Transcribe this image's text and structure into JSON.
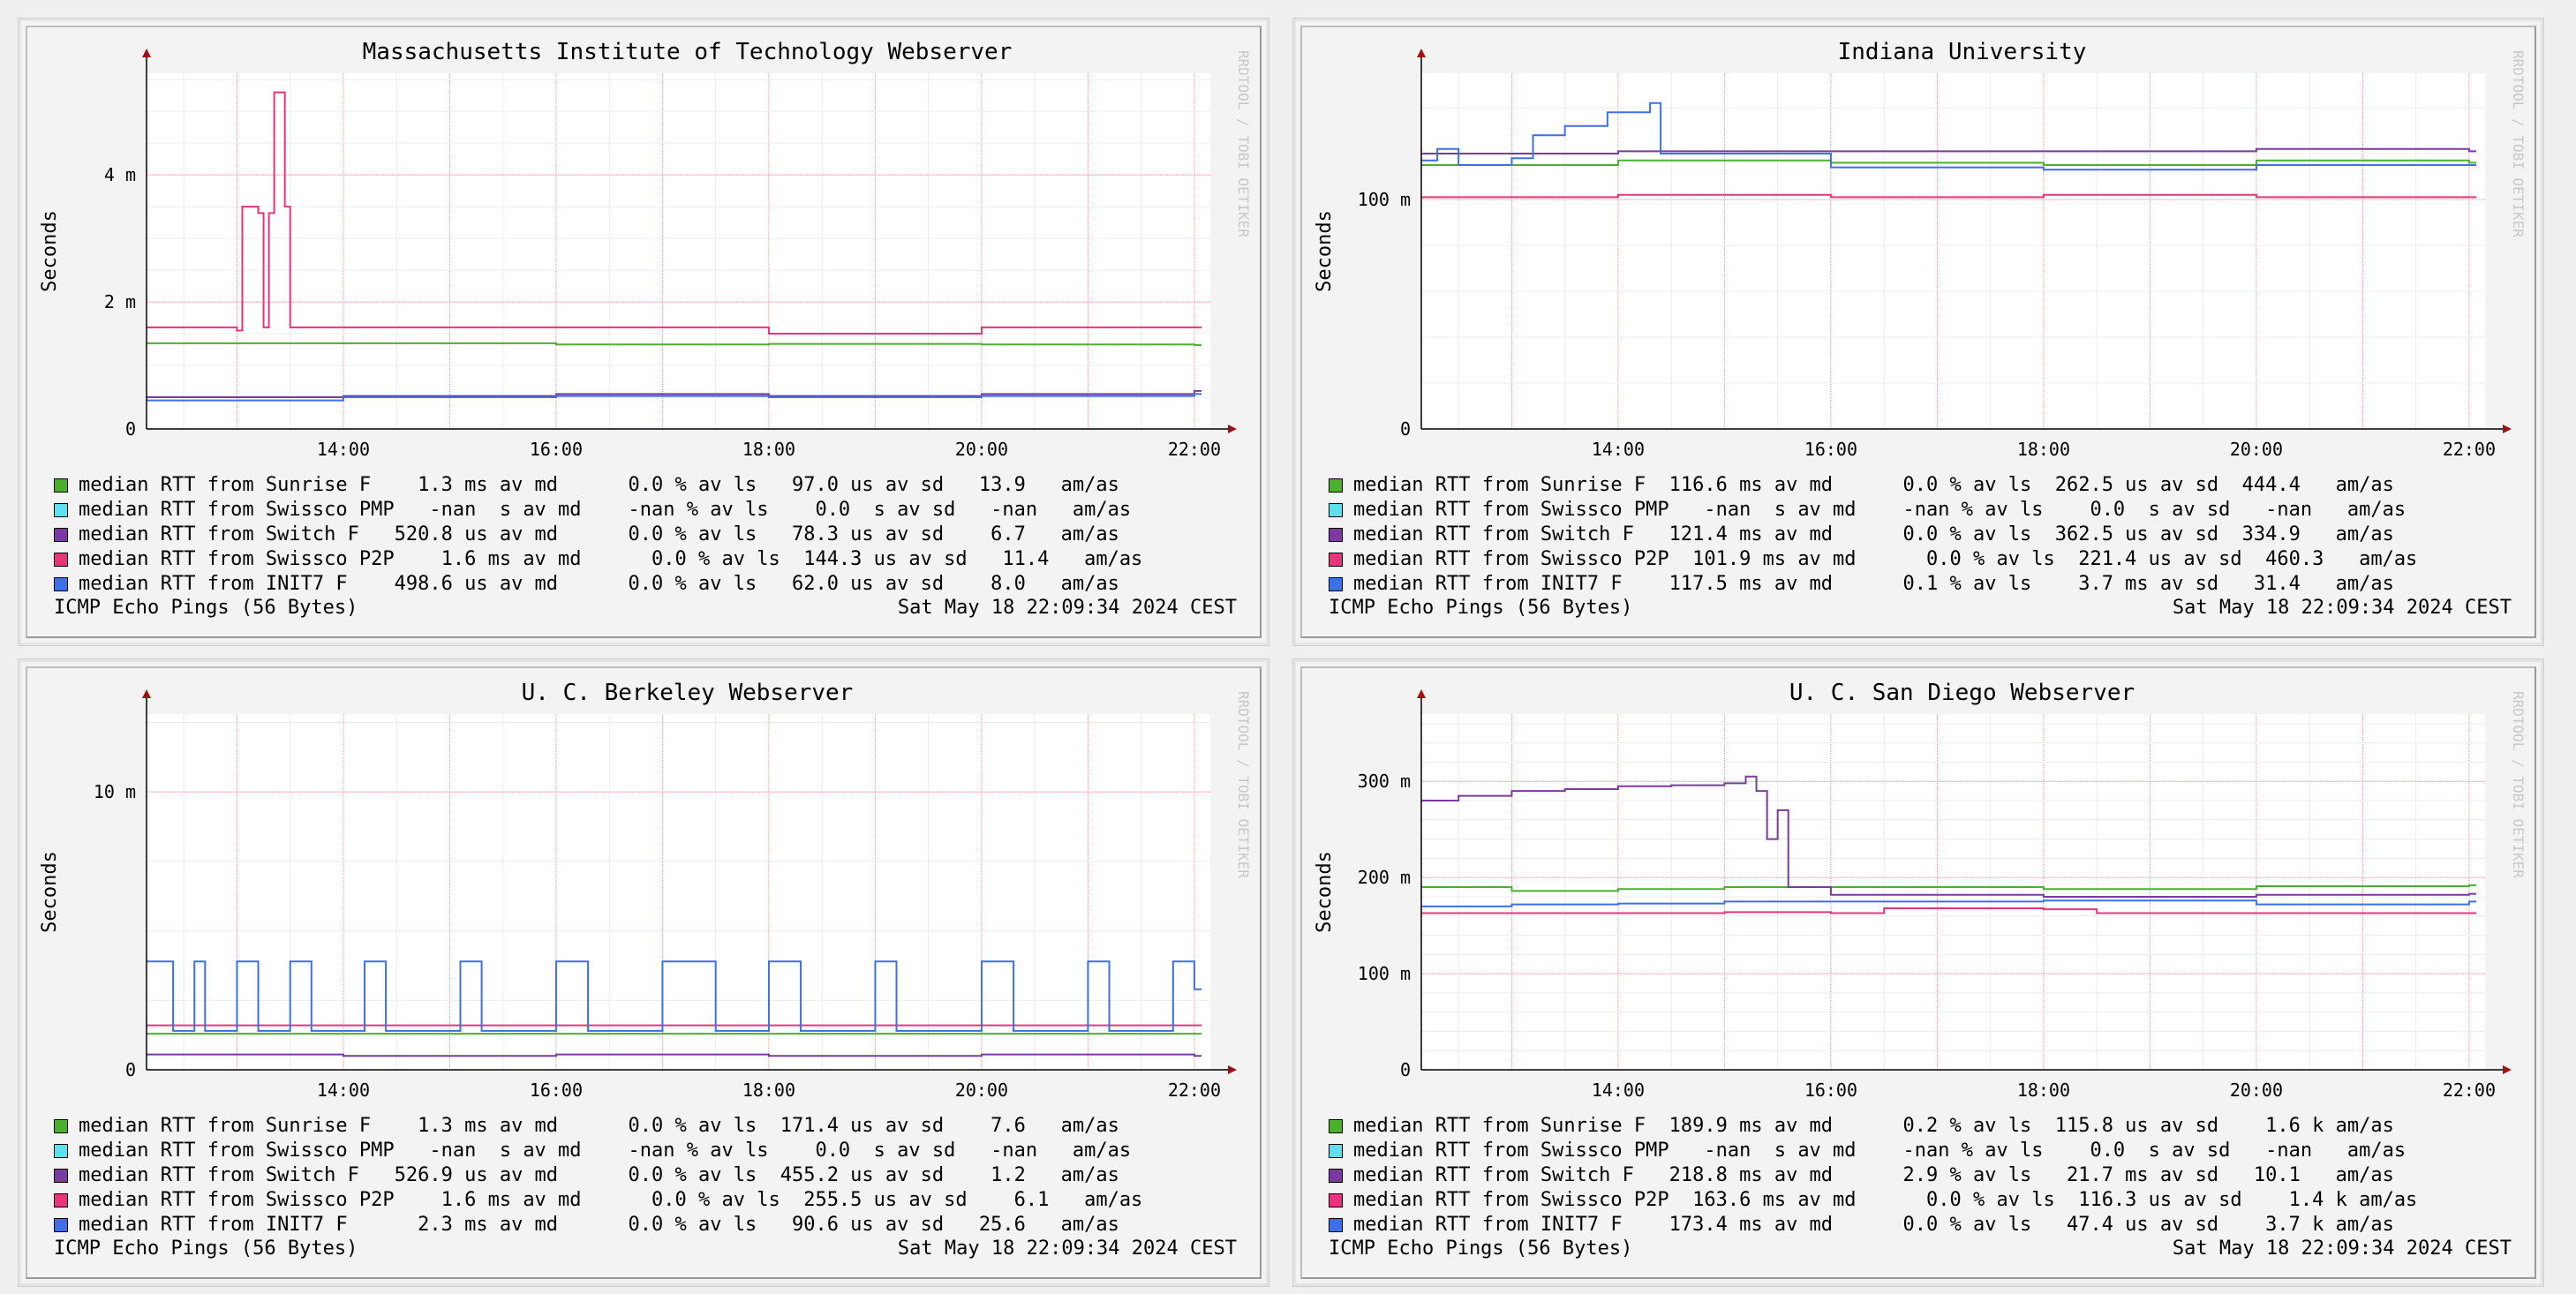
{
  "colors": {
    "sunrise": "#4caf2e",
    "swissco_pmp": "#5fe0ef",
    "switch": "#7b3aa0",
    "swissco_p2p": "#e8347a",
    "init7": "#3d6fe8",
    "grid": "#f0a0a8",
    "axis": "#a01010"
  },
  "panels": [
    {
      "title": "Massachusetts Institute of Technology Webserver",
      "ylabel": "Seconds",
      "watermark": "RRDTOOL / TOBI OETIKER",
      "footer_left": "ICMP Echo Pings (56 Bytes)",
      "footer_right": "Sat May 18 22:09:34 2024 CEST",
      "legend": [
        {
          "key": "sunrise",
          "text": "median RTT from Sunrise F    1.3 ms av md      0.0 % av ls   97.0 us av sd   13.9   am/as"
        },
        {
          "key": "swissco_pmp",
          "text": "median RTT from Swissco PMP   -nan  s av md    -nan % av ls    0.0  s av sd   -nan   am/as"
        },
        {
          "key": "switch",
          "text": "median RTT from Switch F   520.8 us av md      0.0 % av ls   78.3 us av sd    6.7   am/as"
        },
        {
          "key": "swissco_p2p",
          "text": "median RTT from Swissco P2P    1.6 ms av md      0.0 % av ls  144.3 us av sd   11.4   am/as"
        },
        {
          "key": "init7",
          "text": "median RTT from INIT7 F    498.6 us av md      0.0 % av ls   62.0 us av sd    8.0   am/as"
        }
      ]
    },
    {
      "title": "Indiana University",
      "ylabel": "Seconds",
      "watermark": "RRDTOOL / TOBI OETIKER",
      "footer_left": "ICMP Echo Pings (56 Bytes)",
      "footer_right": "Sat May 18 22:09:34 2024 CEST",
      "legend": [
        {
          "key": "sunrise",
          "text": "median RTT from Sunrise F  116.6 ms av md      0.0 % av ls  262.5 us av sd  444.4   am/as"
        },
        {
          "key": "swissco_pmp",
          "text": "median RTT from Swissco PMP   -nan  s av md    -nan % av ls    0.0  s av sd   -nan   am/as"
        },
        {
          "key": "switch",
          "text": "median RTT from Switch F   121.4 ms av md      0.0 % av ls  362.5 us av sd  334.9   am/as"
        },
        {
          "key": "swissco_p2p",
          "text": "median RTT from Swissco P2P  101.9 ms av md      0.0 % av ls  221.4 us av sd  460.3   am/as"
        },
        {
          "key": "init7",
          "text": "median RTT from INIT7 F    117.5 ms av md      0.1 % av ls    3.7 ms av sd   31.4   am/as"
        }
      ]
    },
    {
      "title": "U. C. Berkeley Webserver",
      "ylabel": "Seconds",
      "watermark": "RRDTOOL / TOBI OETIKER",
      "footer_left": "ICMP Echo Pings (56 Bytes)",
      "footer_right": "Sat May 18 22:09:34 2024 CEST",
      "legend": [
        {
          "key": "sunrise",
          "text": "median RTT from Sunrise F    1.3 ms av md      0.0 % av ls  171.4 us av sd    7.6   am/as"
        },
        {
          "key": "swissco_pmp",
          "text": "median RTT from Swissco PMP   -nan  s av md    -nan % av ls    0.0  s av sd   -nan   am/as"
        },
        {
          "key": "switch",
          "text": "median RTT from Switch F   526.9 us av md      0.0 % av ls  455.2 us av sd    1.2   am/as"
        },
        {
          "key": "swissco_p2p",
          "text": "median RTT from Swissco P2P    1.6 ms av md      0.0 % av ls  255.5 us av sd    6.1   am/as"
        },
        {
          "key": "init7",
          "text": "median RTT from INIT7 F      2.3 ms av md      0.0 % av ls   90.6 us av sd   25.6   am/as"
        }
      ]
    },
    {
      "title": "U. C. San Diego Webserver",
      "ylabel": "Seconds",
      "watermark": "RRDTOOL / TOBI OETIKER",
      "footer_left": "ICMP Echo Pings (56 Bytes)",
      "footer_right": "Sat May 18 22:09:34 2024 CEST",
      "legend": [
        {
          "key": "sunrise",
          "text": "median RTT from Sunrise F  189.9 ms av md      0.2 % av ls  115.8 us av sd    1.6 k am/as"
        },
        {
          "key": "swissco_pmp",
          "text": "median RTT from Swissco PMP   -nan  s av md    -nan % av ls    0.0  s av sd   -nan   am/as"
        },
        {
          "key": "switch",
          "text": "median RTT from Switch F   218.8 ms av md      2.9 % av ls   21.7 ms av sd   10.1   am/as"
        },
        {
          "key": "swissco_p2p",
          "text": "median RTT from Swissco P2P  163.6 ms av md      0.0 % av ls  116.3 us av sd    1.4 k am/as"
        },
        {
          "key": "init7",
          "text": "median RTT from INIT7 F    173.4 ms av md      0.0 % av ls   47.4 us av sd    3.7 k am/as"
        }
      ]
    }
  ],
  "chart_data": [
    {
      "type": "line",
      "title": "Massachusetts Institute of Technology Webserver",
      "ylabel": "Seconds",
      "x_ticks": [
        "14:00",
        "16:00",
        "18:00",
        "20:00",
        "22:00"
      ],
      "xlim": [
        12.15,
        22.15
      ],
      "y_ticks": [
        {
          "v": 0,
          "label": "0"
        },
        {
          "v": 2,
          "label": "2 m"
        },
        {
          "v": 4,
          "label": "4 m"
        }
      ],
      "ylim": [
        0,
        5.6
      ],
      "series": [
        {
          "key": "sunrise",
          "name": "Sunrise F",
          "values": [
            [
              12.15,
              1.35
            ],
            [
              14,
              1.35
            ],
            [
              16,
              1.33
            ],
            [
              18,
              1.34
            ],
            [
              20,
              1.33
            ],
            [
              22,
              1.32
            ]
          ]
        },
        {
          "key": "switch",
          "name": "Switch F",
          "values": [
            [
              12.15,
              0.5
            ],
            [
              14,
              0.52
            ],
            [
              16,
              0.55
            ],
            [
              18,
              0.52
            ],
            [
              20,
              0.55
            ],
            [
              22,
              0.6
            ]
          ]
        },
        {
          "key": "swissco_p2p",
          "name": "Swissco P2P",
          "values": [
            [
              12.15,
              1.6
            ],
            [
              13,
              1.55
            ],
            [
              13.05,
              3.5
            ],
            [
              13.2,
              3.4
            ],
            [
              13.25,
              1.6
            ],
            [
              13.3,
              3.4
            ],
            [
              13.35,
              5.3
            ],
            [
              13.45,
              3.5
            ],
            [
              13.5,
              1.6
            ],
            [
              16,
              1.6
            ],
            [
              18,
              1.5
            ],
            [
              20,
              1.6
            ],
            [
              22,
              1.6
            ]
          ]
        },
        {
          "key": "init7",
          "name": "INIT7 F",
          "values": [
            [
              12.15,
              0.45
            ],
            [
              14,
              0.5
            ],
            [
              16,
              0.52
            ],
            [
              18,
              0.5
            ],
            [
              20,
              0.52
            ],
            [
              22,
              0.55
            ]
          ]
        }
      ]
    },
    {
      "type": "line",
      "title": "Indiana University",
      "ylabel": "Seconds",
      "x_ticks": [
        "14:00",
        "16:00",
        "18:00",
        "20:00",
        "22:00"
      ],
      "xlim": [
        12.15,
        22.15
      ],
      "y_ticks": [
        {
          "v": 0,
          "label": "0"
        },
        {
          "v": 100,
          "label": "100 m"
        }
      ],
      "ylim": [
        0,
        155
      ],
      "series": [
        {
          "key": "sunrise",
          "name": "Sunrise F",
          "values": [
            [
              12.15,
              115
            ],
            [
              14,
              117
            ],
            [
              16,
              116
            ],
            [
              18,
              115
            ],
            [
              20,
              117
            ],
            [
              22,
              116
            ]
          ]
        },
        {
          "key": "switch",
          "name": "Switch F",
          "values": [
            [
              12.15,
              120
            ],
            [
              14,
              121
            ],
            [
              16,
              121
            ],
            [
              18,
              121
            ],
            [
              20,
              122
            ],
            [
              22,
              121
            ]
          ]
        },
        {
          "key": "swissco_p2p",
          "name": "Swissco P2P",
          "values": [
            [
              12.15,
              101
            ],
            [
              14,
              102
            ],
            [
              16,
              101
            ],
            [
              18,
              102
            ],
            [
              20,
              101
            ],
            [
              22,
              101
            ]
          ]
        },
        {
          "key": "init7",
          "name": "INIT7 F",
          "values": [
            [
              12.15,
              117
            ],
            [
              12.3,
              122
            ],
            [
              12.5,
              115
            ],
            [
              13,
              118
            ],
            [
              13.2,
              128
            ],
            [
              13.5,
              132
            ],
            [
              13.9,
              138
            ],
            [
              14.3,
              142
            ],
            [
              14.4,
              120
            ],
            [
              16,
              114
            ],
            [
              18,
              113
            ],
            [
              20,
              115
            ],
            [
              22,
              115
            ]
          ]
        }
      ]
    },
    {
      "type": "line",
      "title": "U. C. Berkeley Webserver",
      "ylabel": "Seconds",
      "x_ticks": [
        "14:00",
        "16:00",
        "18:00",
        "20:00",
        "22:00"
      ],
      "xlim": [
        12.15,
        22.15
      ],
      "y_ticks": [
        {
          "v": 0,
          "label": "0"
        },
        {
          "v": 10,
          "label": "10 m"
        }
      ],
      "ylim": [
        0,
        12.8
      ],
      "series": [
        {
          "key": "sunrise",
          "name": "Sunrise F",
          "values": [
            [
              12.15,
              1.3
            ],
            [
              14,
              1.3
            ],
            [
              16,
              1.3
            ],
            [
              18,
              1.3
            ],
            [
              20,
              1.3
            ],
            [
              22,
              1.3
            ]
          ]
        },
        {
          "key": "switch",
          "name": "Switch F",
          "values": [
            [
              12.15,
              0.55
            ],
            [
              14,
              0.5
            ],
            [
              16,
              0.55
            ],
            [
              18,
              0.5
            ],
            [
              20,
              0.55
            ],
            [
              22,
              0.5
            ]
          ]
        },
        {
          "key": "swissco_p2p",
          "name": "Swissco P2P",
          "values": [
            [
              12.15,
              1.6
            ],
            [
              14,
              1.6
            ],
            [
              16,
              1.6
            ],
            [
              18,
              1.6
            ],
            [
              20,
              1.6
            ],
            [
              22,
              1.6
            ]
          ]
        },
        {
          "key": "init7",
          "name": "INIT7 F",
          "values": [
            [
              12.15,
              3.9
            ],
            [
              12.4,
              1.4
            ],
            [
              12.6,
              3.9
            ],
            [
              12.7,
              1.4
            ],
            [
              13,
              3.9
            ],
            [
              13.2,
              1.4
            ],
            [
              13.5,
              3.9
            ],
            [
              13.7,
              1.4
            ],
            [
              14.2,
              3.9
            ],
            [
              14.4,
              1.4
            ],
            [
              15.1,
              3.9
            ],
            [
              15.3,
              1.4
            ],
            [
              16,
              3.9
            ],
            [
              16.3,
              1.4
            ],
            [
              17,
              3.9
            ],
            [
              17.5,
              1.4
            ],
            [
              18,
              3.9
            ],
            [
              18.3,
              1.4
            ],
            [
              19,
              3.9
            ],
            [
              19.2,
              1.4
            ],
            [
              20,
              3.9
            ],
            [
              20.3,
              1.4
            ],
            [
              21,
              3.9
            ],
            [
              21.2,
              1.4
            ],
            [
              21.8,
              3.9
            ],
            [
              22,
              2.9
            ]
          ]
        }
      ]
    },
    {
      "type": "line",
      "title": "U. C. San Diego Webserver",
      "ylabel": "Seconds",
      "x_ticks": [
        "14:00",
        "16:00",
        "18:00",
        "20:00",
        "22:00"
      ],
      "xlim": [
        12.15,
        22.15
      ],
      "y_ticks": [
        {
          "v": 0,
          "label": "0"
        },
        {
          "v": 100,
          "label": "100 m"
        },
        {
          "v": 200,
          "label": "200 m"
        },
        {
          "v": 300,
          "label": "300 m"
        }
      ],
      "ylim": [
        0,
        370
      ],
      "series": [
        {
          "key": "sunrise",
          "name": "Sunrise F",
          "values": [
            [
              12.15,
              190
            ],
            [
              13,
              186
            ],
            [
              14,
              188
            ],
            [
              15,
              190
            ],
            [
              16,
              190
            ],
            [
              18,
              188
            ],
            [
              20,
              191
            ],
            [
              22,
              192
            ]
          ]
        },
        {
          "key": "switch",
          "name": "Switch F",
          "values": [
            [
              12.15,
              280
            ],
            [
              12.5,
              285
            ],
            [
              13,
              290
            ],
            [
              13.5,
              292
            ],
            [
              14,
              295
            ],
            [
              14.5,
              296
            ],
            [
              15,
              298
            ],
            [
              15.2,
              305
            ],
            [
              15.3,
              290
            ],
            [
              15.4,
              240
            ],
            [
              15.5,
              270
            ],
            [
              15.6,
              190
            ],
            [
              16,
              182
            ],
            [
              18,
              180
            ],
            [
              20,
              182
            ],
            [
              22,
              183
            ]
          ]
        },
        {
          "key": "swissco_p2p",
          "name": "Swissco P2P",
          "values": [
            [
              12.15,
              163
            ],
            [
              15,
              164
            ],
            [
              16,
              163
            ],
            [
              16.5,
              168
            ],
            [
              18,
              167
            ],
            [
              18.5,
              163
            ],
            [
              20,
              163
            ],
            [
              22,
              163
            ]
          ]
        },
        {
          "key": "init7",
          "name": "INIT7 F",
          "values": [
            [
              12.15,
              170
            ],
            [
              13,
              172
            ],
            [
              14,
              173
            ],
            [
              15,
              175
            ],
            [
              16,
              175
            ],
            [
              18,
              176
            ],
            [
              20,
              172
            ],
            [
              22,
              175
            ]
          ]
        }
      ]
    }
  ]
}
